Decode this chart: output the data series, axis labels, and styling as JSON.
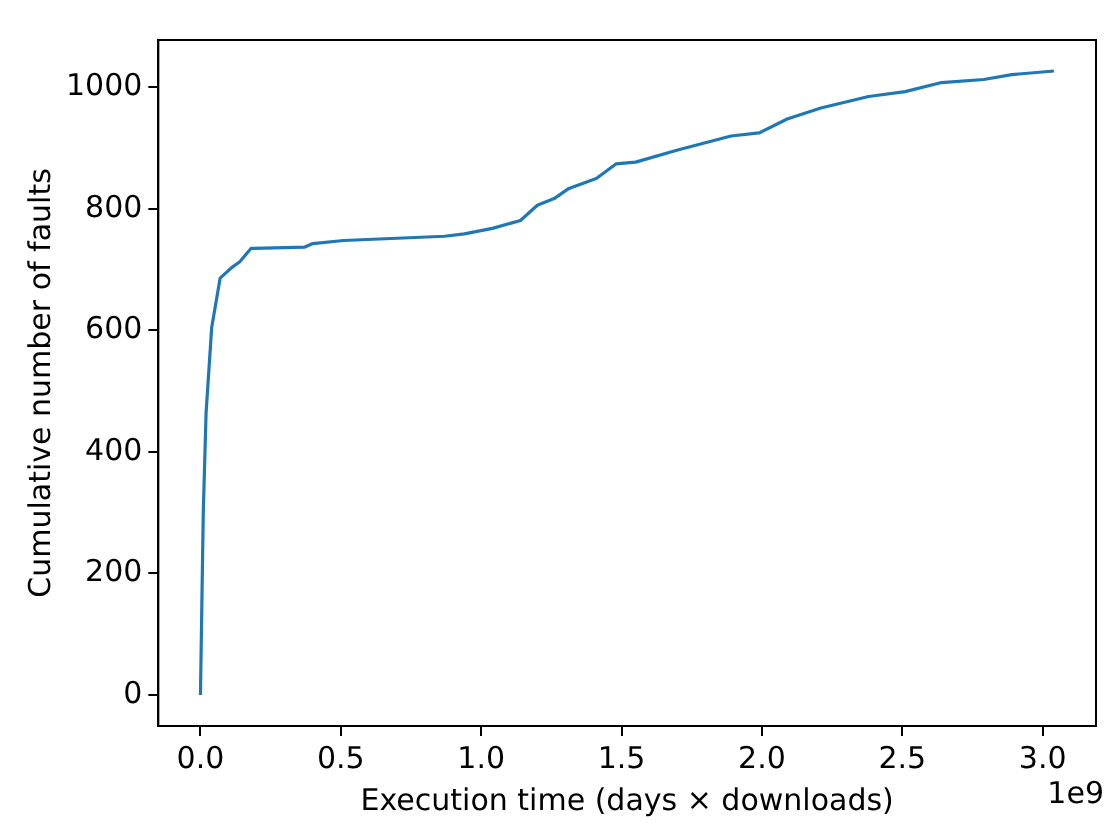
{
  "chart_data": {
    "type": "line",
    "xlabel": "Execution time (days × downloads)",
    "ylabel": "Cumulative number of faults",
    "annotations": [
      "1e9"
    ],
    "x": [
      0,
      0.01,
      0.02,
      0.04,
      0.07,
      0.11,
      0.14,
      0.18,
      0.37,
      0.4,
      0.51,
      0.87,
      0.94,
      1.04,
      1.14,
      1.2,
      1.26,
      1.31,
      1.41,
      1.48,
      1.55,
      1.7,
      1.89,
      1.99,
      2.09,
      2.21,
      2.38,
      2.51,
      2.64,
      2.79,
      2.89,
      3.04
    ],
    "series": [
      {
        "color": "#1f77b4",
        "values": [
          0,
          300,
          464,
          605,
          686,
          703,
          713,
          735,
          737,
          743,
          748,
          755,
          759,
          768,
          781,
          806,
          817,
          833,
          850,
          874,
          877,
          897,
          920,
          925,
          948,
          966,
          985,
          993,
          1008,
          1013,
          1021,
          1027
        ]
      }
    ],
    "xlim": [
      -0.15,
      3.19
    ],
    "ylim": [
      -51,
      1078
    ],
    "xticks": [
      {
        "value": 0,
        "label": "0.0"
      },
      0.5,
      {
        "value": 1,
        "label": "1.0"
      },
      1.5,
      {
        "value": 2,
        "label": "2.0"
      },
      2.5,
      {
        "value": 3,
        "label": "3.0"
      }
    ],
    "yticks": [
      0,
      200,
      400,
      600,
      800,
      1000
    ],
    "grid": false,
    "legend": false,
    "marker": "none",
    "line_style": "solid"
  }
}
